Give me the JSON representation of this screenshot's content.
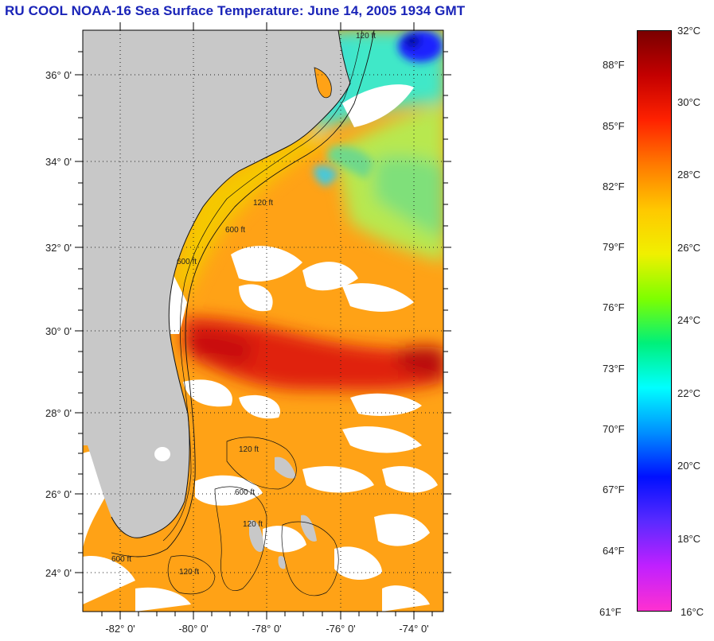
{
  "title": "RU COOL  NOAA-16  Sea Surface Temperature:  June 14, 2005 1934 GMT",
  "map": {
    "latitude_labels": [
      "36° 0'",
      "34° 0'",
      "32° 0'",
      "30° 0'",
      "28° 0'",
      "26° 0'",
      "24° 0'"
    ],
    "longitude_labels": [
      "-82° 0'",
      "-80° 0'",
      "-78° 0'",
      "-76° 0'",
      "-74° 0'"
    ],
    "contour_labels": [
      "120 ft",
      "600 ft"
    ],
    "colors": {
      "land": "#c8c8c8",
      "cloud_mask": "#ffffff",
      "gulf_stream": "#d81a10",
      "shelf_water": "#f2c400"
    }
  },
  "colorbar": {
    "celsius_labels": [
      "32°C",
      "30°C",
      "28°C",
      "26°C",
      "24°C",
      "22°C",
      "20°C",
      "18°C",
      "16°C"
    ],
    "fahrenheit_labels": [
      "88°F",
      "85°F",
      "82°F",
      "79°F",
      "76°F",
      "73°F",
      "70°F",
      "67°F",
      "64°F",
      "61°F"
    ],
    "range_c": [
      16,
      32
    ],
    "colors_top_to_bottom": [
      "#7a0000",
      "#c40000",
      "#ff2200",
      "#ff7a00",
      "#ffc800",
      "#f0f000",
      "#7dff00",
      "#00f07a",
      "#00ffff",
      "#0090ff",
      "#0010ff",
      "#5a2aff",
      "#c020ff",
      "#ff30d0"
    ]
  }
}
